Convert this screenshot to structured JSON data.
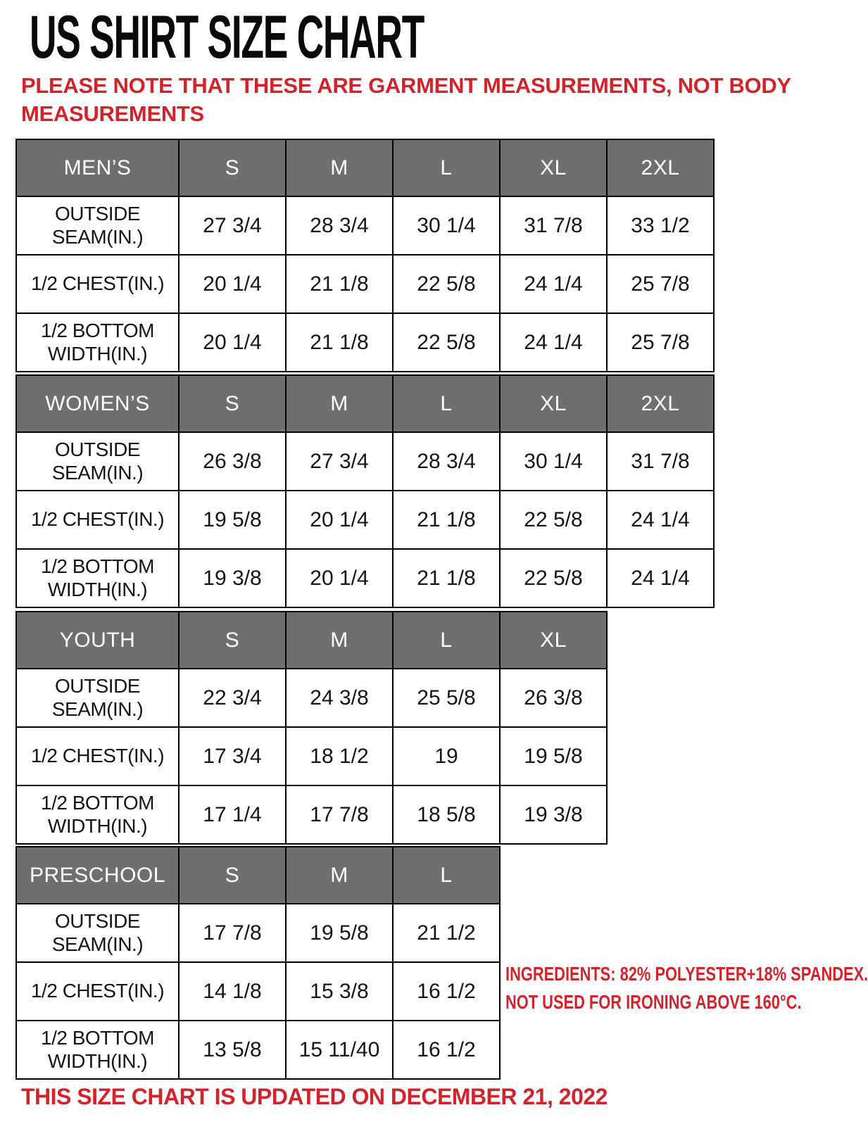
{
  "page": {
    "title": "US SHIRT SIZE CHART",
    "note": "PLEASE NOTE THAT THESE ARE GARMENT MEASUREMENTS, NOT BODY MEASUREMENTS",
    "ingredients": {
      "line1": "INGREDIENTS: 82% POLYESTER+18% SPANDEX.",
      "line2": "NOT USED FOR IRONING ABOVE 160°C."
    },
    "footer": "THIS SIZE CHART IS UPDATED ON DECEMBER 21, 2022"
  },
  "colors": {
    "accent_red": "#d2232a",
    "header_gray": "#6f6f6f",
    "header_text": "#ffffff",
    "body_text": "#151515",
    "border_black": "#000000"
  },
  "tables": [
    {
      "name": "MEN’S",
      "sizes": [
        "S",
        "M",
        "L",
        "XL",
        "2XL"
      ],
      "rows": [
        {
          "label": "OUTSIDE SEAM(IN.)",
          "values": [
            "27 3/4",
            "28 3/4",
            "30 1/4",
            "31 7/8",
            "33 1/2"
          ]
        },
        {
          "label": "1/2 CHEST(IN.)",
          "values": [
            "20 1/4",
            "21 1/8",
            "22 5/8",
            "24 1/4",
            "25 7/8"
          ]
        },
        {
          "label": "1/2 BOTTOM WIDTH(IN.)",
          "values": [
            "20 1/4",
            "21 1/8",
            "22 5/8",
            "24 1/4",
            "25 7/8"
          ]
        }
      ]
    },
    {
      "name": "WOMEN’S",
      "sizes": [
        "S",
        "M",
        "L",
        "XL",
        "2XL"
      ],
      "rows": [
        {
          "label": "OUTSIDE SEAM(IN.)",
          "values": [
            "26 3/8",
            "27 3/4",
            "28 3/4",
            "30 1/4",
            "31 7/8"
          ]
        },
        {
          "label": "1/2 CHEST(IN.)",
          "values": [
            "19 5/8",
            "20 1/4",
            "21 1/8",
            "22 5/8",
            "24 1/4"
          ]
        },
        {
          "label": "1/2 BOTTOM WIDTH(IN.)",
          "values": [
            "19 3/8",
            "20 1/4",
            "21 1/8",
            "22 5/8",
            "24 1/4"
          ]
        }
      ]
    },
    {
      "name": "YOUTH",
      "sizes": [
        "S",
        "M",
        "L",
        "XL"
      ],
      "rows": [
        {
          "label": "OUTSIDE SEAM(IN.)",
          "values": [
            "22 3/4",
            "24 3/8",
            "25 5/8",
            "26 3/8"
          ]
        },
        {
          "label": "1/2 CHEST(IN.)",
          "values": [
            "17 3/4",
            "18 1/2",
            "19",
            "19 5/8"
          ]
        },
        {
          "label": "1/2 BOTTOM WIDTH(IN.)",
          "values": [
            "17 1/4",
            "17 7/8",
            "18 5/8",
            "19 3/8"
          ]
        }
      ]
    },
    {
      "name": "PRESCHOOL",
      "sizes": [
        "S",
        "M",
        "L"
      ],
      "rows": [
        {
          "label": "OUTSIDE SEAM(IN.)",
          "values": [
            "17 7/8",
            "19 5/8",
            "21 1/2"
          ]
        },
        {
          "label": "1/2 CHEST(IN.)",
          "values": [
            "14 1/8",
            "15 3/8",
            "16 1/2"
          ]
        },
        {
          "label": "1/2 BOTTOM WIDTH(IN.)",
          "values": [
            "13 5/8",
            "15 11/40",
            "16 1/2"
          ]
        }
      ]
    }
  ]
}
